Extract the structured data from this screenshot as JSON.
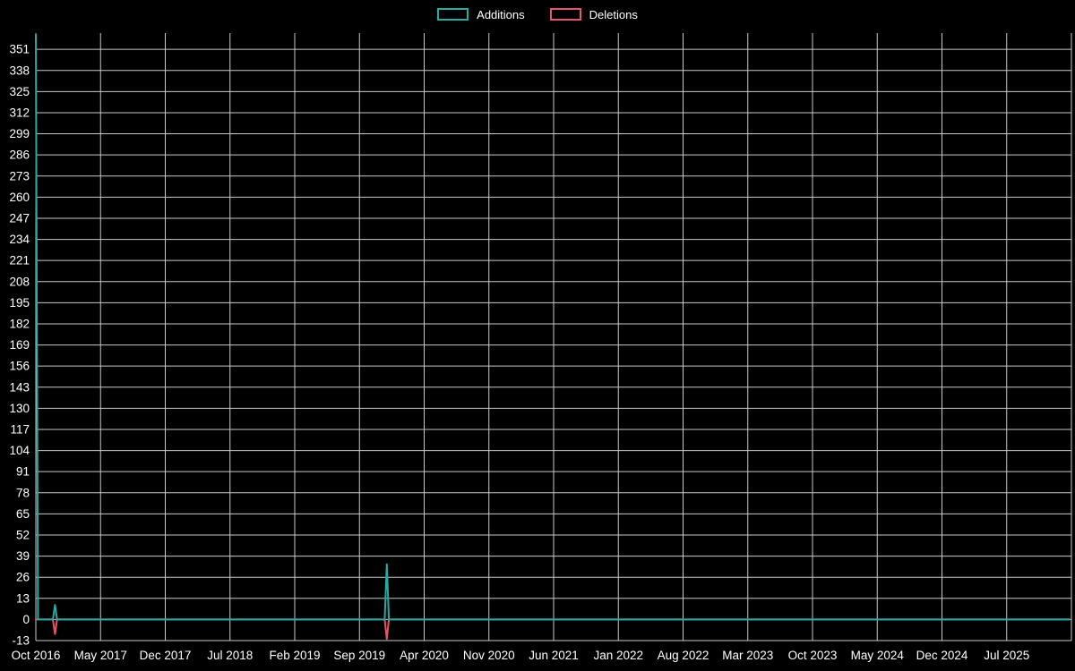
{
  "page": {
    "background": "#000000",
    "text_color": "#ffffff",
    "grid_color": "#c9c9c9"
  },
  "legend": {
    "position": "top-center",
    "items": [
      {
        "label": "Additions",
        "color": "#2aa8a2"
      },
      {
        "label": "Deletions",
        "color": "#e4546b"
      }
    ]
  },
  "chart_data": {
    "type": "line",
    "title": "",
    "grid": true,
    "legend_position": "top",
    "x_axis": {
      "labels": [
        "Oct 2016",
        "May 2017",
        "Dec 2017",
        "Jul 2018",
        "Feb 2019",
        "Sep 2019",
        "Apr 2020",
        "Nov 2020",
        "Jun 2021",
        "Jan 2022",
        "Aug 2022",
        "Mar 2023",
        "Oct 2023",
        "May 2024",
        "Dec 2024",
        "Jul 2025"
      ],
      "weeks_per_label_interval": 30.43
    },
    "y_axis": {
      "min": -13,
      "max": 361,
      "tick_step": 13,
      "ticks": [
        -13,
        0,
        13,
        26,
        39,
        52,
        65,
        78,
        91,
        104,
        117,
        130,
        143,
        156,
        169,
        182,
        195,
        208,
        221,
        234,
        247,
        260,
        273,
        286,
        299,
        312,
        325,
        338,
        351
      ]
    },
    "series": [
      {
        "name": "Additions",
        "color": "#2aa8a2",
        "baseline": 0,
        "spikes": [
          {
            "week": 0,
            "value": 360,
            "approx_date": "Oct 2016"
          },
          {
            "week": 9,
            "value": 9,
            "approx_date": "Dec 2016"
          },
          {
            "week": 165,
            "value": 34,
            "approx_date": "Dec 2019"
          }
        ]
      },
      {
        "name": "Deletions",
        "color": "#e4546b",
        "baseline": 0,
        "spikes": [
          {
            "week": 9,
            "value": -9,
            "approx_date": "Dec 2016"
          },
          {
            "week": 165,
            "value": -12,
            "approx_date": "Dec 2019"
          }
        ]
      }
    ]
  }
}
